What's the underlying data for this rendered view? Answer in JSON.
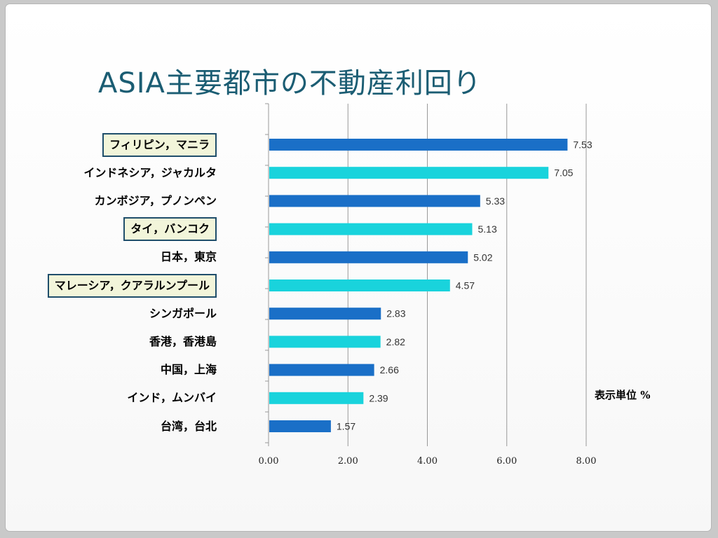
{
  "title": "ASIA主要都市の不動産利回り",
  "unit_label": "表示単位 %",
  "colors": {
    "dark": "#1a6fc7",
    "light": "#19d3dc",
    "axis": "#999999",
    "title": "#1b5d73"
  },
  "chart_data": {
    "type": "bar",
    "orientation": "horizontal",
    "categories": [
      "フィリピン，マニラ",
      "インドネシア，ジャカルタ",
      "カンボジア，プノンペン",
      "タイ，バンコク",
      "日本，東京",
      "マレーシア，クアラルンプール",
      "シンガポール",
      "香港，香港島",
      "中国，上海",
      "インド，ムンバイ",
      "台湾，台北"
    ],
    "values": [
      7.53,
      7.05,
      5.33,
      5.13,
      5.02,
      4.57,
      2.83,
      2.82,
      2.66,
      2.39,
      1.57
    ],
    "value_labels": [
      "7.53",
      "7.05",
      "5.33",
      "5.13",
      "5.02",
      "4.57",
      "2.83",
      "2.82",
      "2.66",
      "2.39",
      "1.57"
    ],
    "highlighted": [
      true,
      false,
      false,
      true,
      false,
      true,
      false,
      false,
      false,
      false,
      false
    ],
    "bar_colors": [
      "dark",
      "light",
      "dark",
      "light",
      "dark",
      "light",
      "dark",
      "light",
      "dark",
      "light",
      "dark"
    ],
    "xlim": [
      0,
      8
    ],
    "x_ticks": [
      0,
      2,
      4,
      6,
      8
    ],
    "x_tick_labels": [
      "0.00",
      "2.00",
      "4.00",
      "6.00",
      "8.00"
    ],
    "grid": true,
    "legend": "none"
  }
}
